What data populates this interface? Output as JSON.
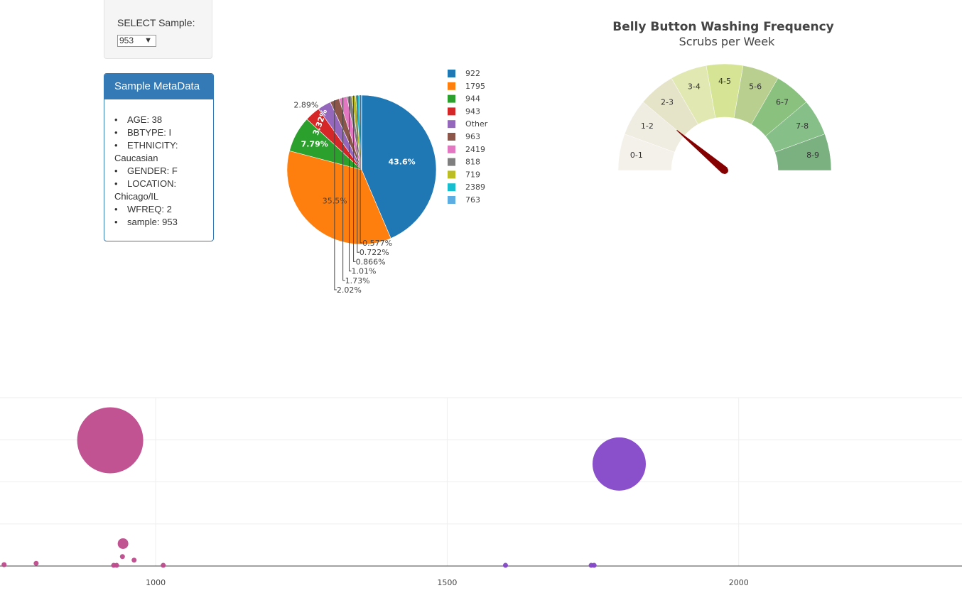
{
  "selector": {
    "label": "SELECT Sample:",
    "value": "953"
  },
  "metadata": {
    "heading": "Sample MetaData",
    "items": [
      "AGE: 38",
      "BBTYPE: I",
      "ETHNICITY: Caucasian",
      "GENDER: F",
      "LOCATION: Chicago/IL",
      "WFREQ: 2",
      "sample: 953"
    ]
  },
  "colors": {
    "panel_blue": "#337ab7",
    "needle": "#850000"
  },
  "chart_data": [
    {
      "type": "pie",
      "labels": [
        "922",
        "1795",
        "944",
        "943",
        "Other",
        "963",
        "2419",
        "818",
        "719",
        "2389",
        "763"
      ],
      "values": [
        43.6,
        35.5,
        7.79,
        3.32,
        2.89,
        2.02,
        1.73,
        1.01,
        0.866,
        0.722,
        0.577
      ],
      "percent_labels": [
        "43.6%",
        "35.5%",
        "7.79%",
        "3.32%",
        "2.89%",
        "2.02%",
        "1.73%",
        "1.01%",
        "0.866%",
        "0.722%",
        "0.577%"
      ],
      "colors": [
        "#1f77b4",
        "#ff7f0e",
        "#2ca02c",
        "#d62728",
        "#9467bd",
        "#8c564b",
        "#e377c2",
        "#7f7f7f",
        "#bcbd22",
        "#17becf",
        "#5dade2"
      ],
      "legend_position": "right"
    },
    {
      "type": "gauge",
      "title": "Belly Button Washing Frequency",
      "subtitle": "Scrubs per Week",
      "sections": [
        "0-1",
        "1-2",
        "2-3",
        "3-4",
        "4-5",
        "5-6",
        "6-7",
        "7-8",
        "8-9"
      ],
      "section_colors": [
        "#f4f1ea",
        "#efece1",
        "#e6e4c8",
        "#e1e8b1",
        "#d5e595",
        "#b8cf8f",
        "#8bc17f",
        "#87bf88",
        "#7bb081"
      ],
      "range": [
        0,
        9
      ],
      "value": 2
    },
    {
      "type": "scatter",
      "mode": "bubble",
      "x_ticks": [
        "1000",
        "1500",
        "2000"
      ],
      "xlim": [
        733,
        2383
      ],
      "ylim": [
        0,
        100
      ],
      "points": [
        {
          "x": 922,
          "y": 74.7,
          "size": 93,
          "color": "#bf4a8c"
        },
        {
          "x": 1795,
          "y": 60.6,
          "size": 75,
          "color": "#8447c9"
        },
        {
          "x": 944,
          "y": 13.3,
          "size": 15,
          "color": "#bf4a8c"
        },
        {
          "x": 943,
          "y": 5.6,
          "size": 7,
          "color": "#bf4a8c"
        },
        {
          "x": 963,
          "y": 3.5,
          "size": 7,
          "color": "#bf4a8c"
        },
        {
          "x": 740,
          "y": 0.8,
          "size": 7,
          "color": "#bf4a8c"
        },
        {
          "x": 795,
          "y": 1.6,
          "size": 7,
          "color": "#bf4a8c"
        },
        {
          "x": 928,
          "y": 0.4,
          "size": 7,
          "color": "#bf4a8c"
        },
        {
          "x": 933,
          "y": 0.4,
          "size": 7,
          "color": "#bf4a8c"
        },
        {
          "x": 1747,
          "y": 0.4,
          "size": 7,
          "color": "#8447c9"
        },
        {
          "x": 1013,
          "y": 0.4,
          "size": 7,
          "color": "#bf4a8c"
        },
        {
          "x": 1600,
          "y": 0.4,
          "size": 7,
          "color": "#8447c9"
        },
        {
          "x": 1752,
          "y": 0.4,
          "size": 7,
          "color": "#8447c9"
        }
      ]
    }
  ]
}
